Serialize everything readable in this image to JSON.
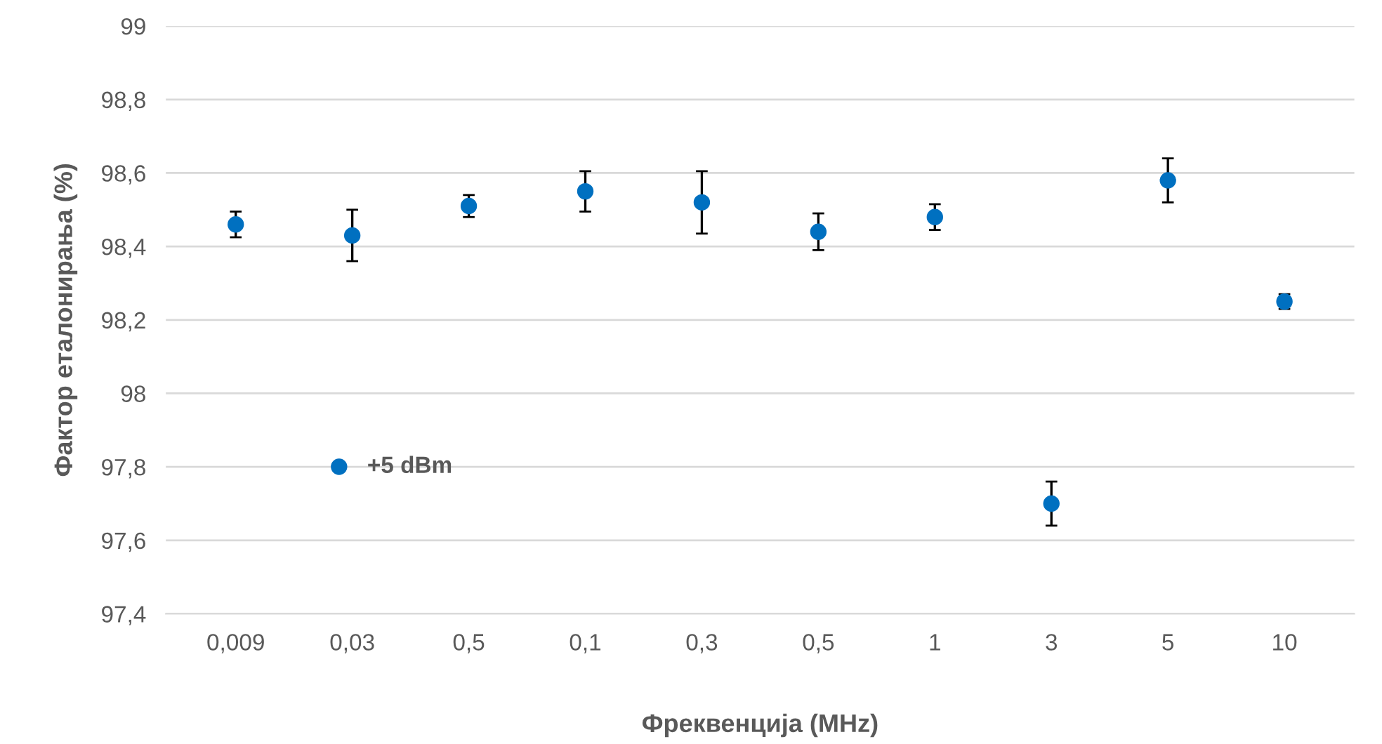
{
  "chart_data": {
    "type": "scatter",
    "xlabel": "Фреквенција (MHz)",
    "ylabel": "Фактор еталонирања (%)",
    "categories": [
      "0,009",
      "0,03",
      "0,5",
      "0,1",
      "0,3",
      "0,5",
      "1",
      "3",
      "5",
      "10"
    ],
    "series": [
      {
        "name": "+5 dBm",
        "color": "#0070c0",
        "values": [
          98.46,
          98.43,
          98.51,
          98.55,
          98.52,
          98.44,
          98.48,
          97.7,
          98.58,
          98.25
        ],
        "errors": [
          0.035,
          0.07,
          0.03,
          0.055,
          0.085,
          0.05,
          0.035,
          0.06,
          0.06,
          0.02
        ]
      }
    ],
    "ylim": [
      97.4,
      99
    ],
    "yticks": [
      {
        "value": 97.4,
        "label": "97,4"
      },
      {
        "value": 97.6,
        "label": "97,6"
      },
      {
        "value": 97.8,
        "label": "97,8"
      },
      98,
      {
        "value": 98.2,
        "label": "98,2"
      },
      {
        "value": 98.4,
        "label": "98,4"
      },
      {
        "value": 98.6,
        "label": "98,6"
      },
      {
        "value": 98.8,
        "label": "98,8"
      },
      99
    ],
    "grid": "y",
    "legend": "center left",
    "marker": "circle"
  }
}
